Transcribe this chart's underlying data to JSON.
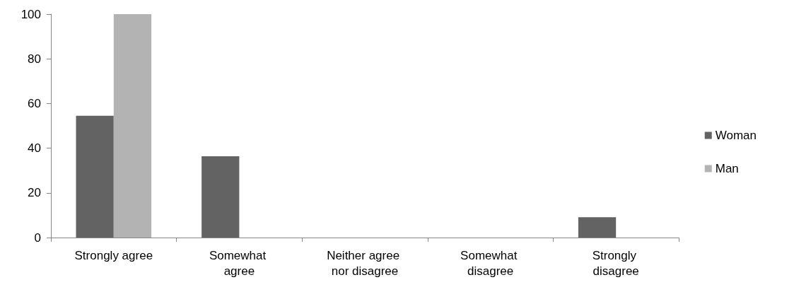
{
  "chart_data": {
    "type": "bar",
    "categories": [
      "Strongly agree",
      "Somewhat agree",
      "Neither agree nor disagree",
      "Somewhat disagree",
      "Strongly disagree"
    ],
    "series": [
      {
        "name": "Woman",
        "color": "#636363",
        "values": [
          54.5,
          36.4,
          0,
          0,
          9.1
        ]
      },
      {
        "name": "Man",
        "color": "#b3b3b3",
        "values": [
          100,
          0,
          0,
          0,
          0
        ]
      }
    ],
    "ylim": [
      0,
      100
    ],
    "yticks": [
      0,
      20,
      40,
      60,
      80,
      100
    ],
    "grid": false,
    "legend": "right"
  }
}
